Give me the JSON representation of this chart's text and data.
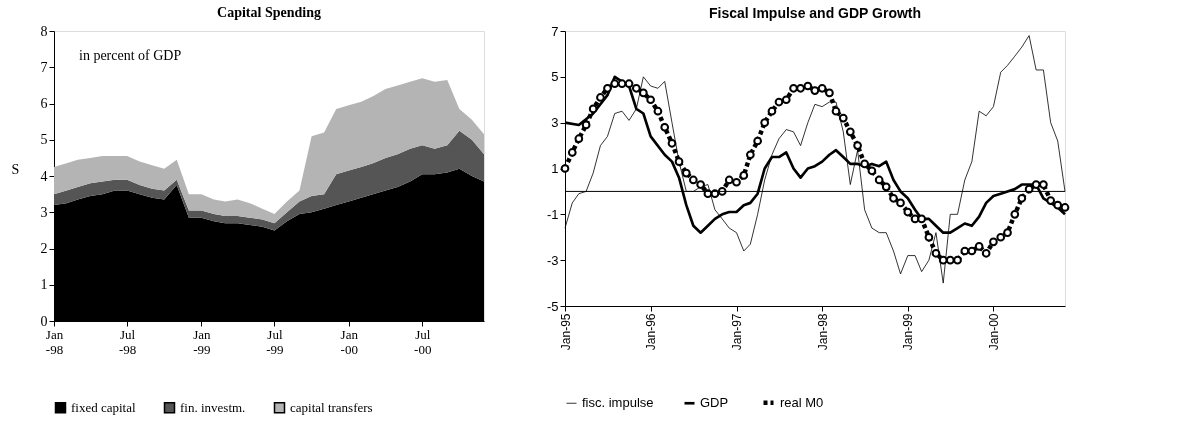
{
  "chart_data": [
    {
      "type": "area",
      "title": "Capital Spending",
      "ylabel": "S",
      "stacked": true,
      "legend": "bottom",
      "annotations": [
        "in percent of GDP"
      ],
      "x": [
        "1998-01",
        "1998-02",
        "1998-03",
        "1998-04",
        "1998-05",
        "1998-06",
        "1998-07",
        "1998-08",
        "1998-09",
        "1998-10",
        "1998-11",
        "1998-12",
        "1999-01",
        "1999-02",
        "1999-03",
        "1999-04",
        "1999-05",
        "1999-06",
        "1999-07",
        "1999-08",
        "1999-09",
        "1999-10",
        "1999-11",
        "1999-12",
        "2000-01",
        "2000-02",
        "2000-03",
        "2000-04",
        "2000-05",
        "2000-06",
        "2000-07",
        "2000-08",
        "2000-09",
        "2000-10",
        "2000-11",
        "2000-12"
      ],
      "xlim": [
        "1998-01",
        "2000-12"
      ],
      "xticks": [
        {
          "value": "1998-01",
          "label": "Jan\n-98"
        },
        {
          "value": "1998-07",
          "label": "Jul\n-98"
        },
        {
          "value": "1999-01",
          "label": "Jan\n-99"
        },
        {
          "value": "1999-07",
          "label": "Jul\n-99"
        },
        {
          "value": "2000-01",
          "label": "Jan\n-00"
        },
        {
          "value": "2000-07",
          "label": "Jul\n-00"
        }
      ],
      "ylim": [
        0,
        8
      ],
      "yticks": [
        0,
        1,
        2,
        3,
        4,
        5,
        6,
        7,
        8
      ],
      "series": [
        {
          "name": "fixed capital",
          "color": "#000000",
          "values": [
            3.2,
            3.25,
            3.35,
            3.45,
            3.5,
            3.6,
            3.6,
            3.5,
            3.4,
            3.35,
            3.75,
            2.85,
            2.85,
            2.75,
            2.7,
            2.7,
            2.65,
            2.6,
            2.5,
            2.75,
            2.95,
            3.0,
            3.1,
            3.2,
            3.3,
            3.4,
            3.5,
            3.6,
            3.7,
            3.85,
            4.05,
            4.05,
            4.1,
            4.2,
            4.0,
            3.85
          ]
        },
        {
          "name": "fin. investm.",
          "color": "#555555",
          "values": [
            0.3,
            0.35,
            0.35,
            0.35,
            0.35,
            0.3,
            0.3,
            0.25,
            0.25,
            0.25,
            0.15,
            0.2,
            0.2,
            0.2,
            0.2,
            0.2,
            0.2,
            0.2,
            0.2,
            0.25,
            0.35,
            0.45,
            0.4,
            0.85,
            0.85,
            0.85,
            0.85,
            0.9,
            0.9,
            0.9,
            0.8,
            0.7,
            0.75,
            1.05,
            1.0,
            0.75
          ]
        },
        {
          "name": "capital transfers",
          "color": "#b4b4b4",
          "values": [
            0.75,
            0.75,
            0.75,
            0.7,
            0.7,
            0.65,
            0.65,
            0.65,
            0.65,
            0.6,
            0.55,
            0.45,
            0.45,
            0.4,
            0.4,
            0.45,
            0.4,
            0.3,
            0.25,
            0.3,
            0.3,
            1.65,
            1.7,
            1.8,
            1.8,
            1.8,
            1.85,
            1.9,
            1.9,
            1.85,
            1.85,
            1.85,
            1.8,
            0.6,
            0.55,
            0.55
          ]
        }
      ]
    },
    {
      "type": "line",
      "title": "Fiscal Impulse and GDP Growth",
      "legend": "bottom",
      "x": [
        "1995-01",
        "1995-02",
        "1995-03",
        "1995-04",
        "1995-05",
        "1995-06",
        "1995-07",
        "1995-08",
        "1995-09",
        "1995-10",
        "1995-11",
        "1995-12",
        "1996-01",
        "1996-02",
        "1996-03",
        "1996-04",
        "1996-05",
        "1996-06",
        "1996-07",
        "1996-08",
        "1996-09",
        "1996-10",
        "1996-11",
        "1996-12",
        "1997-01",
        "1997-02",
        "1997-03",
        "1997-04",
        "1997-05",
        "1997-06",
        "1997-07",
        "1997-08",
        "1997-09",
        "1997-10",
        "1997-11",
        "1997-12",
        "1998-01",
        "1998-02",
        "1998-03",
        "1998-04",
        "1998-05",
        "1998-06",
        "1998-07",
        "1998-08",
        "1998-09",
        "1998-10",
        "1998-11",
        "1998-12",
        "1999-01",
        "1999-02",
        "1999-03",
        "1999-04",
        "1999-05",
        "1999-06",
        "1999-07",
        "1999-08",
        "1999-09",
        "1999-10",
        "1999-11",
        "1999-12",
        "2000-01",
        "2000-02",
        "2000-03",
        "2000-04",
        "2000-05",
        "2000-06",
        "2000-07",
        "2000-08",
        "2000-09",
        "2000-10",
        "2000-11"
      ],
      "xlim": [
        "1995-01",
        "2000-11"
      ],
      "xticks": [
        {
          "value": "1995-01",
          "label": "Jan-95"
        },
        {
          "value": "1996-01",
          "label": "Jan-96"
        },
        {
          "value": "1997-01",
          "label": "Jan-97"
        },
        {
          "value": "1998-01",
          "label": "Jan-98"
        },
        {
          "value": "1999-01",
          "label": "Jan-99"
        },
        {
          "value": "2000-01",
          "label": "Jan-00"
        }
      ],
      "ylim": [
        -5,
        7
      ],
      "yticks": [
        -5,
        -3,
        -1,
        1,
        3,
        5,
        7
      ],
      "ref_lines": [
        {
          "axis": "y",
          "value": 0,
          "color": "#000000"
        }
      ],
      "series": [
        {
          "name": "fisc. impulse",
          "color": "#000000",
          "values": [
            -1.6,
            -0.5,
            -0.1,
            0.0,
            0.8,
            2.0,
            2.4,
            3.4,
            3.5,
            3.1,
            3.6,
            5.0,
            4.6,
            4.5,
            4.8,
            3.0,
            1.3,
            0.0,
            0.0,
            0.2,
            0.3,
            -0.8,
            -1.2,
            -1.6,
            -1.8,
            -2.6,
            -2.3,
            -1.0,
            0.5,
            1.6,
            2.3,
            2.7,
            2.6,
            2.0,
            3.0,
            3.8,
            3.7,
            3.9,
            3.9,
            2.6,
            0.3,
            1.8,
            -0.8,
            -1.6,
            -1.8,
            -1.8,
            -2.6,
            -3.6,
            -2.8,
            -2.8,
            -3.5,
            -3.0,
            -1.8,
            -4.0,
            -1.0,
            -1.0,
            0.5,
            1.3,
            3.5,
            3.3,
            3.7,
            5.2,
            5.5,
            5.9,
            6.3,
            6.8,
            5.3,
            5.3,
            3.0,
            2.2,
            0.0
          ]
        },
        {
          "name": "GDP",
          "color": "#000000",
          "x": [
            "1995-01",
            "1995-03",
            "1995-05",
            "1995-07",
            "1995-08",
            "1995-10",
            "1995-11",
            "1995-12",
            "1996-01",
            "1996-03",
            "1996-04",
            "1996-05",
            "1996-06",
            "1996-07",
            "1996-08",
            "1996-09",
            "1996-10",
            "1996-11",
            "1996-12",
            "1997-01",
            "1997-02",
            "1997-03",
            "1997-04",
            "1997-05",
            "1997-06",
            "1997-07",
            "1997-08",
            "1997-09",
            "1997-10",
            "1997-11",
            "1997-12",
            "1998-01",
            "1998-02",
            "1998-03",
            "1998-04",
            "1998-05",
            "1998-06",
            "1998-07",
            "1998-08",
            "1998-09",
            "1998-10",
            "1998-11",
            "1998-12",
            "1999-01",
            "1999-02",
            "1999-03",
            "1999-04",
            "1999-05",
            "1999-06",
            "1999-07",
            "1999-08",
            "1999-09",
            "1999-10",
            "1999-11",
            "1999-12",
            "2000-01",
            "2000-02",
            "2000-03",
            "2000-04",
            "2000-05",
            "2000-06",
            "2000-07",
            "2000-08",
            "2000-09",
            "2000-10",
            "2000-11"
          ],
          "values": [
            3.0,
            2.9,
            3.4,
            4.2,
            5.0,
            4.6,
            3.6,
            3.4,
            2.4,
            1.6,
            1.3,
            0.6,
            -0.6,
            -1.5,
            -1.8,
            -1.5,
            -1.2,
            -1.0,
            -0.9,
            -0.9,
            -0.6,
            -0.5,
            -0.1,
            1.0,
            1.5,
            1.5,
            1.7,
            1.0,
            0.6,
            1.0,
            1.1,
            1.3,
            1.6,
            1.8,
            1.5,
            1.2,
            1.2,
            1.1,
            1.2,
            1.1,
            1.3,
            0.5,
            0.0,
            -0.3,
            -0.8,
            -1.2,
            -1.2,
            -1.5,
            -1.8,
            -1.8,
            -1.6,
            -1.4,
            -1.5,
            -1.1,
            -0.5,
            -0.2,
            -0.1,
            0.0,
            0.1,
            0.3,
            0.3,
            0.3,
            -0.3,
            -0.5,
            -0.7,
            -1.0
          ]
        },
        {
          "name": "real M0",
          "color": "#000000",
          "line_style": "dashed",
          "marker": "circle",
          "values": [
            1.0,
            1.7,
            2.3,
            2.9,
            3.6,
            4.1,
            4.5,
            4.7,
            4.7,
            4.7,
            4.5,
            4.3,
            4.0,
            3.5,
            2.8,
            2.1,
            1.3,
            0.8,
            0.5,
            0.3,
            -0.1,
            -0.1,
            0.0,
            0.5,
            0.4,
            0.7,
            1.6,
            2.2,
            3.0,
            3.5,
            3.9,
            4.0,
            4.5,
            4.5,
            4.6,
            4.4,
            4.5,
            4.3,
            3.5,
            3.2,
            2.6,
            2.0,
            1.2,
            0.9,
            0.5,
            0.2,
            -0.3,
            -0.5,
            -0.9,
            -1.2,
            -1.2,
            -2.0,
            -2.7,
            -3.0,
            -3.0,
            -3.0,
            -2.6,
            -2.6,
            -2.4,
            -2.7,
            -2.2,
            -2.0,
            -1.8,
            -1.0,
            -0.3,
            0.1,
            0.3,
            0.3,
            -0.4,
            -0.6,
            -0.7
          ]
        }
      ]
    }
  ]
}
